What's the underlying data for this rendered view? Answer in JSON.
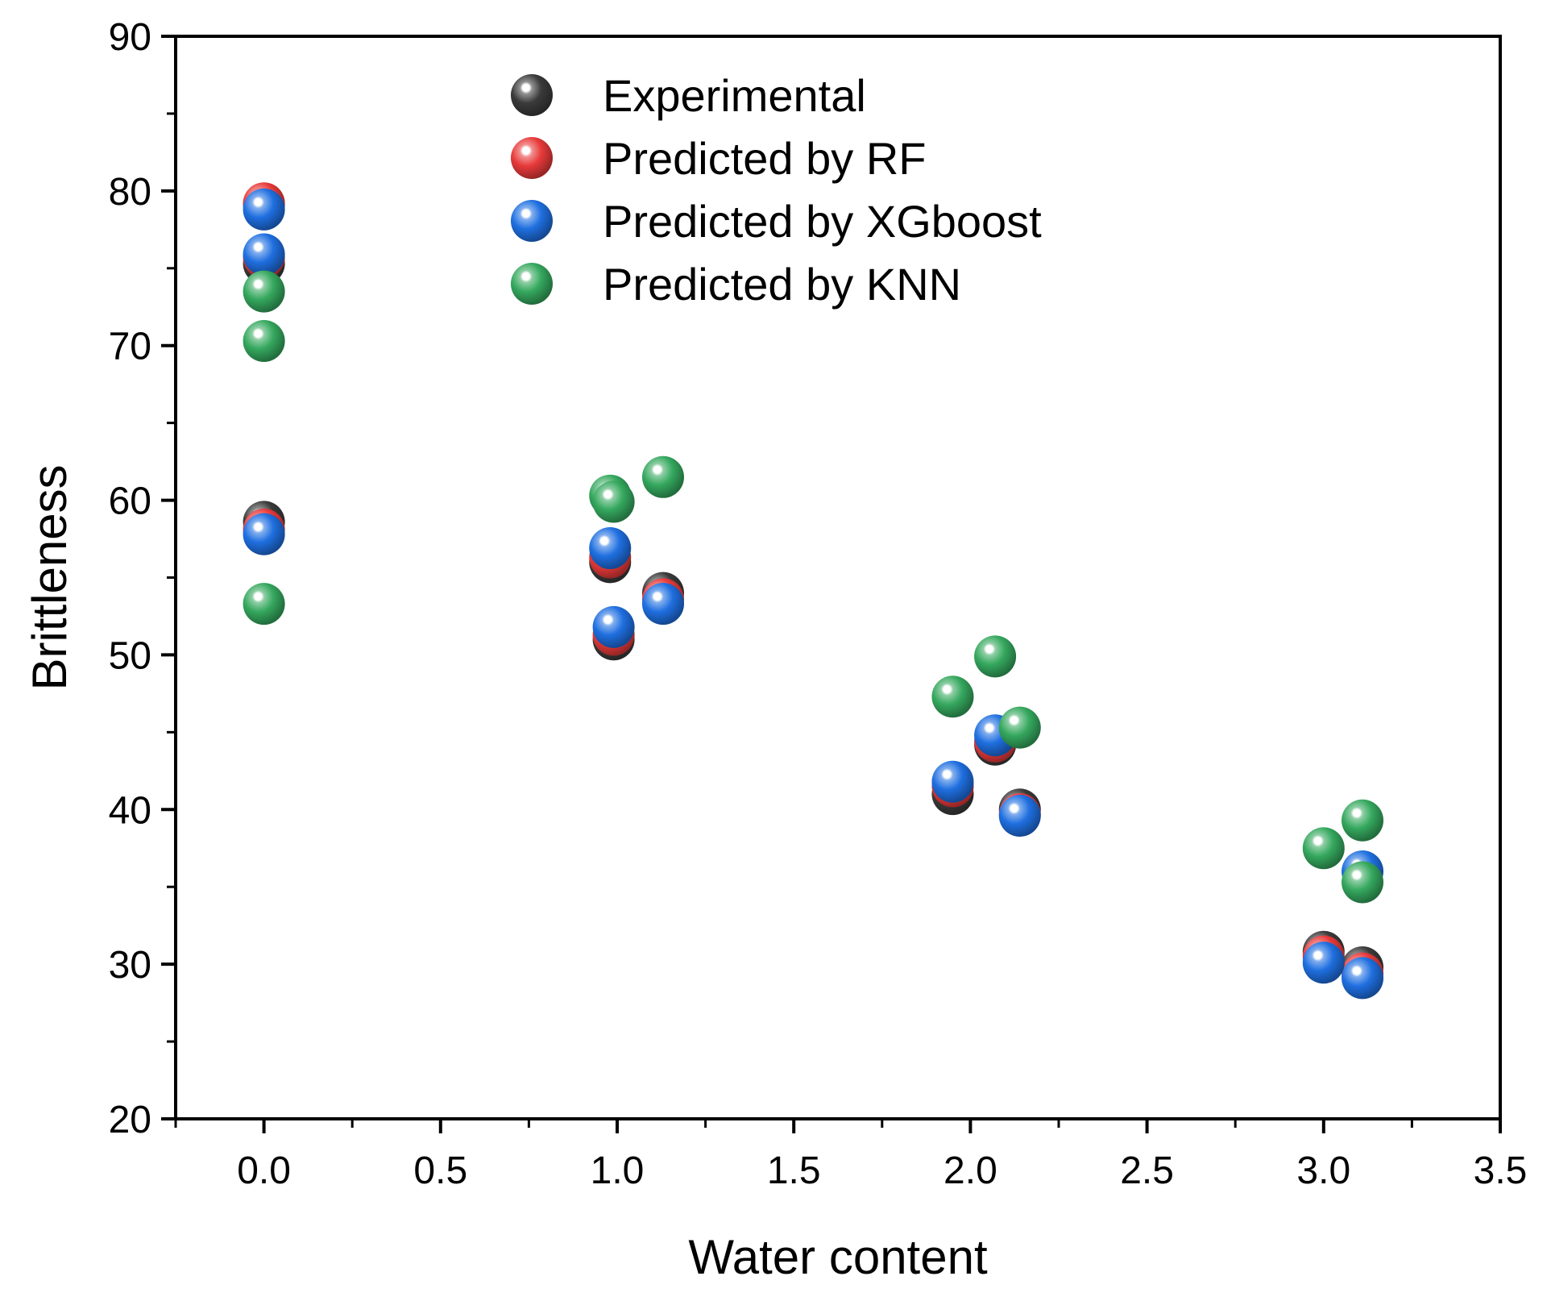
{
  "chart_data": {
    "type": "scatter",
    "title": "",
    "xlabel": "Water content",
    "ylabel": "Brittleness",
    "xlim": [
      -0.25,
      3.5
    ],
    "ylim": [
      20,
      90
    ],
    "x_ticks": [
      {
        "value": 0.0,
        "label": "0.0"
      },
      {
        "value": 0.5,
        "label": "0.5"
      },
      {
        "value": 1.0,
        "label": "1.0"
      },
      {
        "value": 1.5,
        "label": "1.5"
      },
      {
        "value": 2.0,
        "label": "2.0"
      },
      {
        "value": 2.5,
        "label": "2.5"
      },
      {
        "value": 3.0,
        "label": "3.0"
      },
      {
        "value": 3.5,
        "label": "3.5"
      }
    ],
    "y_ticks": [
      {
        "value": 20,
        "label": "20"
      },
      {
        "value": 30,
        "label": "30"
      },
      {
        "value": 40,
        "label": "40"
      },
      {
        "value": 50,
        "label": "50"
      },
      {
        "value": 60,
        "label": "60"
      },
      {
        "value": 70,
        "label": "70"
      },
      {
        "value": 80,
        "label": "80"
      },
      {
        "value": 90,
        "label": "90"
      }
    ],
    "legend_position": "top-center",
    "series": [
      {
        "name": "Experimental",
        "color": "#3a3a3a",
        "points": [
          {
            "x": 0.0,
            "y": 79.1
          },
          {
            "x": 0.0,
            "y": 75.3
          },
          {
            "x": 0.0,
            "y": 58.6
          },
          {
            "x": 0.99,
            "y": 51.0
          },
          {
            "x": 0.98,
            "y": 56.0
          },
          {
            "x": 1.13,
            "y": 54.0
          },
          {
            "x": 1.95,
            "y": 41.0
          },
          {
            "x": 2.07,
            "y": 44.2
          },
          {
            "x": 2.14,
            "y": 40.0
          },
          {
            "x": 3.0,
            "y": 30.8
          },
          {
            "x": 3.11,
            "y": 29.8
          }
        ]
      },
      {
        "name": "Predicted by RF",
        "color": "#e83a3a",
        "points": [
          {
            "x": 0.0,
            "y": 79.2
          },
          {
            "x": 0.0,
            "y": 75.7
          },
          {
            "x": 0.0,
            "y": 58.1
          },
          {
            "x": 0.99,
            "y": 51.3
          },
          {
            "x": 0.98,
            "y": 56.3
          },
          {
            "x": 1.13,
            "y": 53.6
          },
          {
            "x": 1.95,
            "y": 41.5
          },
          {
            "x": 2.07,
            "y": 44.4
          },
          {
            "x": 2.14,
            "y": 39.7
          },
          {
            "x": 3.0,
            "y": 30.5
          },
          {
            "x": 3.11,
            "y": 29.4
          }
        ]
      },
      {
        "name": "Predicted by XGboost",
        "color": "#1f6fe0",
        "points": [
          {
            "x": 0.0,
            "y": 78.8
          },
          {
            "x": 0.0,
            "y": 75.9
          },
          {
            "x": 0.0,
            "y": 57.8
          },
          {
            "x": 0.99,
            "y": 51.8
          },
          {
            "x": 0.98,
            "y": 56.9
          },
          {
            "x": 1.13,
            "y": 53.3
          },
          {
            "x": 1.95,
            "y": 41.8
          },
          {
            "x": 2.07,
            "y": 44.8
          },
          {
            "x": 2.14,
            "y": 39.6
          },
          {
            "x": 3.0,
            "y": 30.1
          },
          {
            "x": 3.11,
            "y": 36.0
          },
          {
            "x": 3.11,
            "y": 29.1
          }
        ]
      },
      {
        "name": "Predicted by KNN",
        "color": "#35a85e",
        "points": [
          {
            "x": 0.0,
            "y": 73.5
          },
          {
            "x": 0.0,
            "y": 70.3
          },
          {
            "x": 0.0,
            "y": 53.3
          },
          {
            "x": 0.98,
            "y": 60.3
          },
          {
            "x": 0.99,
            "y": 59.9
          },
          {
            "x": 1.13,
            "y": 61.5
          },
          {
            "x": 1.95,
            "y": 47.3
          },
          {
            "x": 2.07,
            "y": 49.9
          },
          {
            "x": 2.14,
            "y": 45.3
          },
          {
            "x": 3.0,
            "y": 37.5
          },
          {
            "x": 3.11,
            "y": 39.3
          },
          {
            "x": 3.11,
            "y": 35.3
          }
        ]
      }
    ]
  }
}
